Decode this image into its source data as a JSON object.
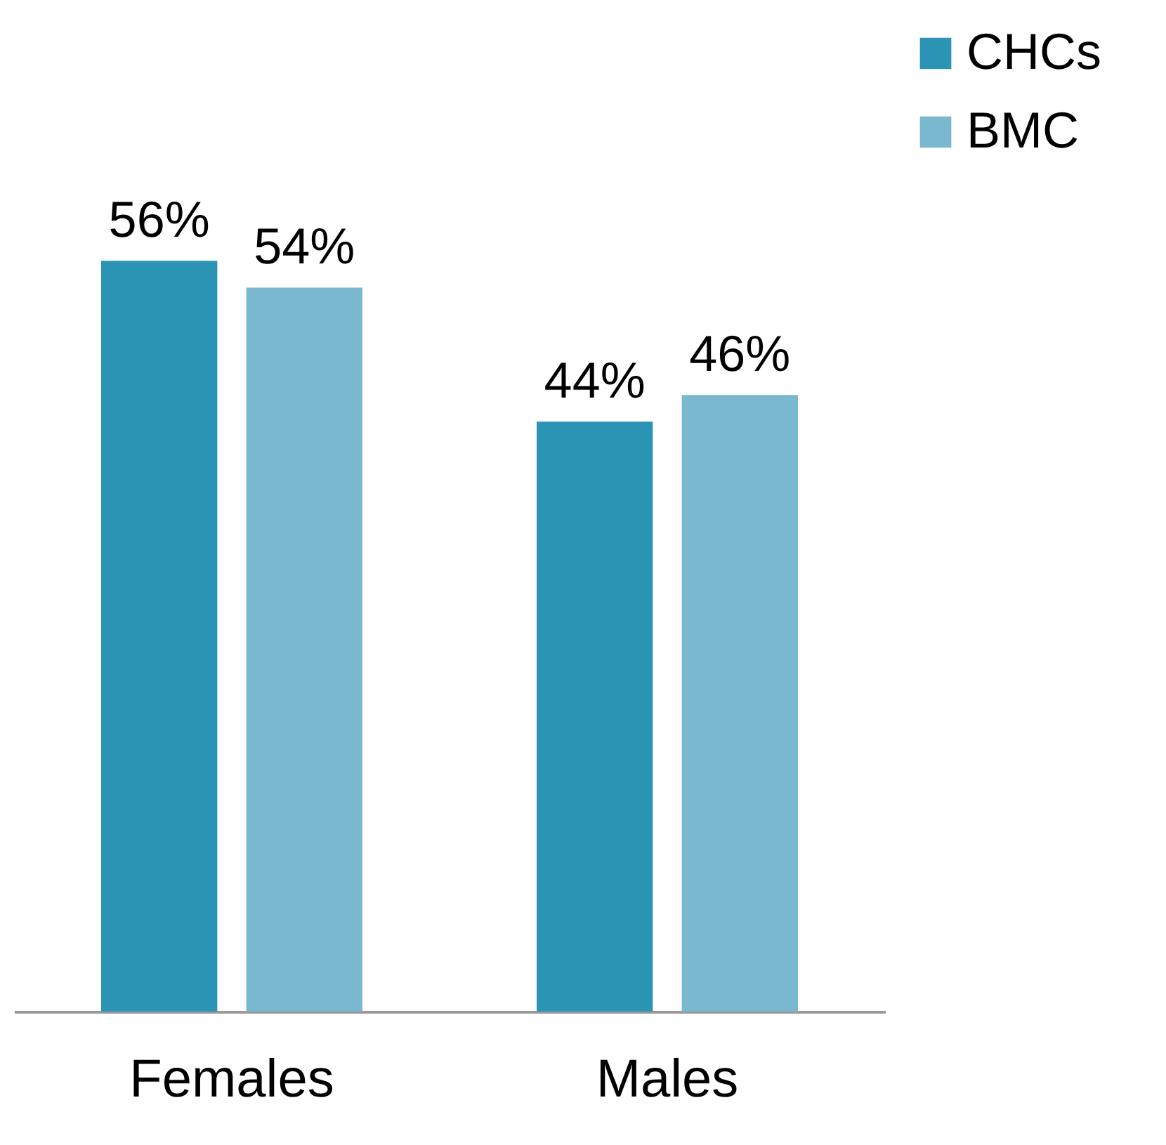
{
  "chart_data": {
    "type": "bar",
    "categories": [
      "Females",
      "Males"
    ],
    "series": [
      {
        "name": "CHCs",
        "color": "#2b93b4",
        "values": [
          56,
          44
        ],
        "value_labels": [
          "56%",
          "44%"
        ]
      },
      {
        "name": "BMC",
        "color": "#7ab8cf",
        "values": [
          54,
          46
        ],
        "value_labels": [
          "54%",
          "46%"
        ]
      }
    ],
    "legend": "top right",
    "grid": false
  }
}
